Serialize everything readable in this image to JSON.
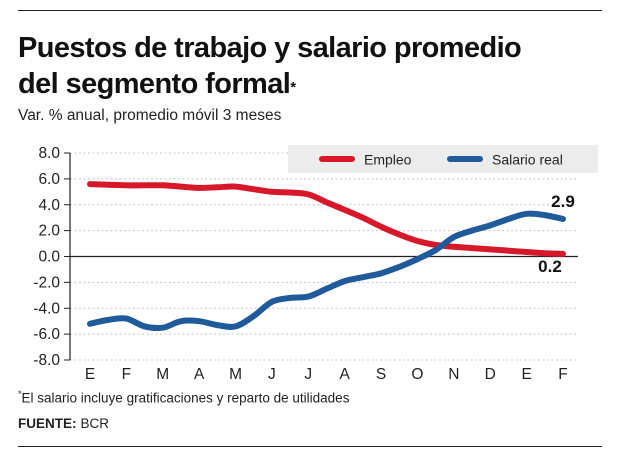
{
  "header": {
    "title_line1": "Puestos de trabajo y salario promedio",
    "title_line2": "del segmento formal",
    "title_mark": "*",
    "subtitle": "Var. % anual, promedio móvil 3 meses"
  },
  "footer": {
    "footnote_mark": "*",
    "footnote": "El salario incluye gratificaciones y reparto de utilidades",
    "source_label": "FUENTE:",
    "source": "BCR"
  },
  "chart_data": {
    "type": "line",
    "title": "Puestos de trabajo y salario promedio del segmento formal*",
    "ylabel": "Var. % anual, promedio móvil 3 meses",
    "xlabel": "",
    "ylim": [
      -8.0,
      8.0
    ],
    "yticks": [
      "8.0",
      "6.0",
      "4.0",
      "2.0",
      "0.0",
      "-2.0",
      "-4.0",
      "-6.0",
      "-8.0"
    ],
    "categories": [
      "E",
      "F",
      "M",
      "A",
      "M",
      "J",
      "J",
      "A",
      "S",
      "O",
      "N",
      "D",
      "E",
      "F"
    ],
    "legend_position": "top-right",
    "series": [
      {
        "name": "Empleo",
        "color": "#d7182a",
        "x": [
          0,
          0.5,
          1,
          1.5,
          2,
          2.5,
          3,
          3.5,
          4,
          4.5,
          5,
          5.5,
          6,
          6.5,
          7,
          7.5,
          8,
          8.5,
          9,
          9.5,
          10,
          10.5,
          11,
          11.5,
          12,
          12.5,
          13
        ],
        "values": [
          5.6,
          5.55,
          5.5,
          5.5,
          5.5,
          5.4,
          5.3,
          5.35,
          5.4,
          5.2,
          5.0,
          4.95,
          4.8,
          4.2,
          3.6,
          3.0,
          2.3,
          1.7,
          1.2,
          0.9,
          0.75,
          0.65,
          0.55,
          0.45,
          0.35,
          0.25,
          0.2
        ]
      },
      {
        "name": "Salario real",
        "color": "#1f5a9b",
        "x": [
          0,
          0.5,
          1,
          1.5,
          2,
          2.5,
          3,
          3.5,
          4,
          4.5,
          5,
          5.5,
          6,
          6.5,
          7,
          7.5,
          8,
          8.5,
          9,
          9.5,
          10,
          10.5,
          11,
          11.5,
          12,
          12.5,
          13
        ],
        "values": [
          -5.2,
          -4.9,
          -4.8,
          -5.4,
          -5.5,
          -5.0,
          -5.0,
          -5.3,
          -5.4,
          -4.6,
          -3.5,
          -3.2,
          -3.1,
          -2.5,
          -1.9,
          -1.6,
          -1.3,
          -0.8,
          -0.2,
          0.5,
          1.5,
          2.0,
          2.4,
          2.9,
          3.3,
          3.2,
          2.9
        ]
      }
    ],
    "annotations": [
      {
        "series": "Salario real",
        "index": 13,
        "text": "2.9"
      },
      {
        "series": "Empleo",
        "index": 13,
        "text": "0.2"
      }
    ]
  }
}
